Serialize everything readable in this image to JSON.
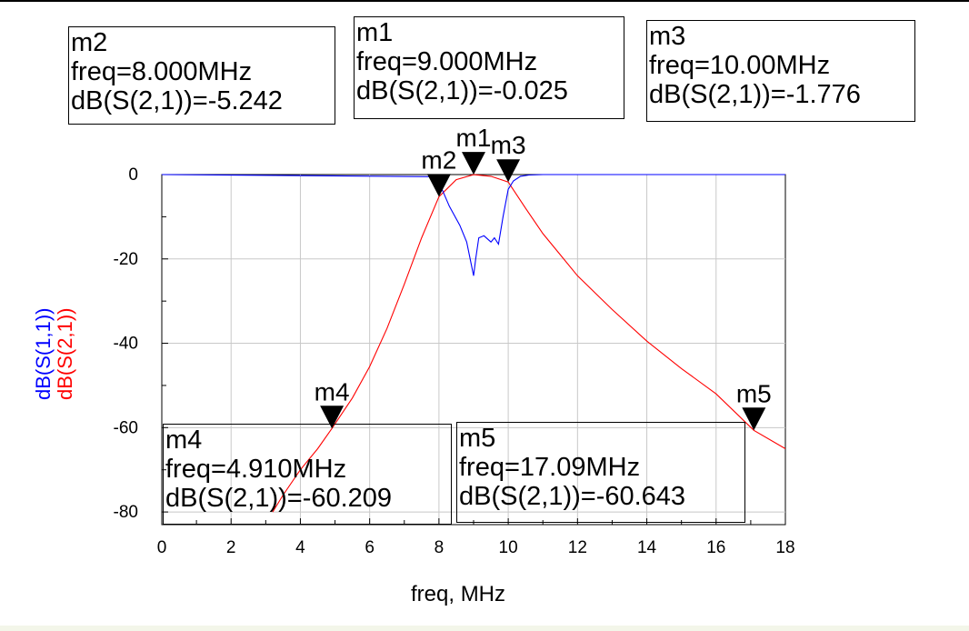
{
  "chart_data": {
    "type": "line",
    "xlabel": "freq, MHz",
    "ylabels": [
      {
        "text": "dB(S(1,1))",
        "color": "#0000ff"
      },
      {
        "text": "dB(S(2,1))",
        "color": "#ff0000"
      }
    ],
    "xlim": [
      0,
      18
    ],
    "ylim": [
      -83,
      0
    ],
    "xticks": [
      0,
      2,
      4,
      6,
      8,
      10,
      12,
      14,
      16,
      18
    ],
    "yticks": [
      0,
      -20,
      -40,
      -60,
      -80
    ],
    "grid": true,
    "series": [
      {
        "name": "dB(S(2,1))",
        "color": "#ff0000",
        "x": [
          3.2,
          3.5,
          4.0,
          4.5,
          4.91,
          5.5,
          6.0,
          6.5,
          7.0,
          7.5,
          8.0,
          8.5,
          9.0,
          9.5,
          10.0,
          10.5,
          11.0,
          11.5,
          12.0,
          12.5,
          13.0,
          14.0,
          15.0,
          16.0,
          17.09,
          18.0
        ],
        "y": [
          -80,
          -76,
          -70,
          -65,
          -60.209,
          -53,
          -45.5,
          -36.5,
          -26,
          -15,
          -5.242,
          -1.2,
          -0.025,
          -0.4,
          -1.776,
          -8,
          -14,
          -19,
          -24,
          -28,
          -32,
          -39.5,
          -46,
          -52,
          -60.643,
          -65
        ]
      },
      {
        "name": "dB(S(1,1))",
        "color": "#0000ff",
        "x": [
          0,
          7.8,
          8.0,
          8.3,
          8.6,
          8.8,
          8.95,
          9.0,
          9.06,
          9.15,
          9.3,
          9.5,
          9.6,
          9.72,
          9.85,
          10.0,
          10.15,
          10.35,
          10.6,
          11.0,
          18.0
        ],
        "y": [
          0,
          -0.5,
          -1.8,
          -7.5,
          -12,
          -16,
          -22,
          -24,
          -20,
          -15,
          -14.5,
          -16,
          -15,
          -16.5,
          -10,
          -3.5,
          -1.5,
          -0.4,
          -0.1,
          0,
          0
        ]
      }
    ],
    "markers": [
      {
        "id": "m1",
        "freq_text": "freq=9.000MHz",
        "value_text": "dB(S(2,1))=-0.025",
        "x": 9.0,
        "y": -0.025
      },
      {
        "id": "m2",
        "freq_text": "freq=8.000MHz",
        "value_text": "dB(S(2,1))=-5.242",
        "x": 8.0,
        "y": -5.242
      },
      {
        "id": "m3",
        "freq_text": "freq=10.00MHz",
        "value_text": "dB(S(2,1))=-1.776",
        "x": 10.0,
        "y": -1.776
      },
      {
        "id": "m4",
        "freq_text": "freq=4.910MHz",
        "value_text": "dB(S(2,1))=-60.209",
        "x": 4.91,
        "y": -60.209
      },
      {
        "id": "m5",
        "freq_text": "freq=17.09MHz",
        "value_text": "dB(S(2,1))=-60.643",
        "x": 17.09,
        "y": -60.643
      }
    ]
  }
}
